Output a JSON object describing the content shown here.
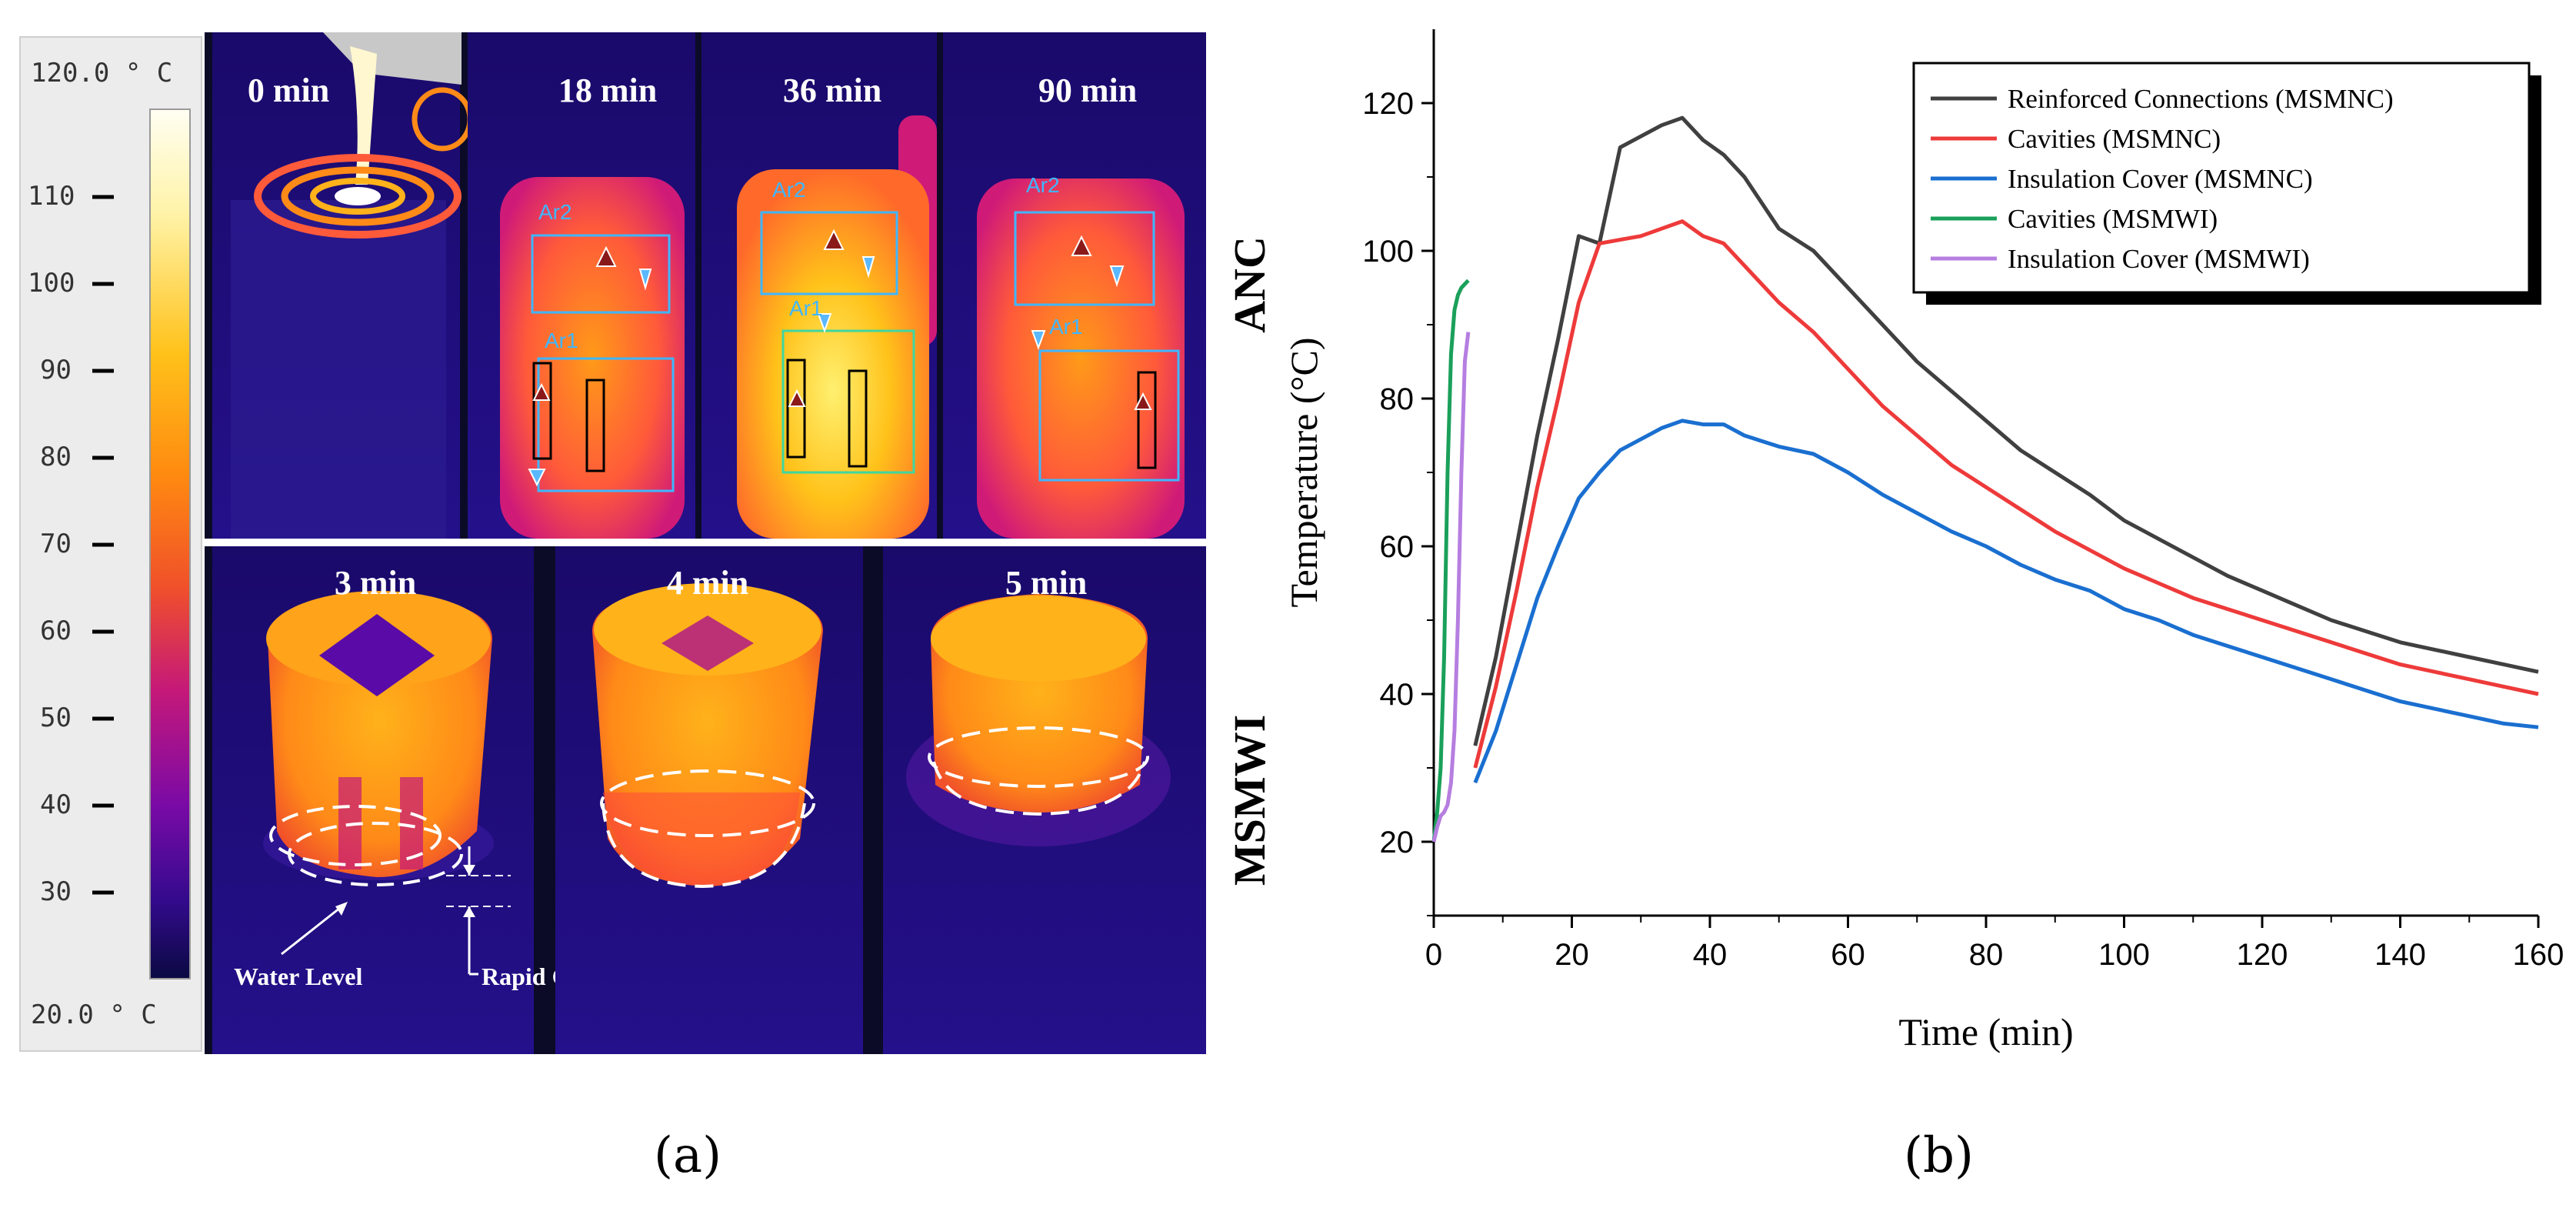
{
  "panel_a": {
    "colorbar": {
      "max_label": "120.0 ° C",
      "min_label": "20.0 ° C",
      "ticks": [
        "110",
        "100",
        "90",
        "80",
        "70",
        "60",
        "50",
        "40",
        "30"
      ]
    },
    "top_frames": [
      "0 min",
      "18 min",
      "36 min",
      "90 min"
    ],
    "bottom_frames": [
      "3 min",
      "4 min",
      "5 min"
    ],
    "regions": {
      "ar1": "Ar1",
      "ar2": "Ar2"
    },
    "annotations": {
      "water_level": "Water Level",
      "cooling_zone": "Rapid Cooling Zone"
    },
    "caption": "(a)"
  },
  "panel_b": {
    "caption": "(b)"
  },
  "colors": {
    "reinforced": "#404040",
    "cavities_nc": "#ee3a3a",
    "insulation_nc": "#1a6fd0",
    "cavities_wi": "#1aa05a",
    "insulation_wi": "#b67ee0"
  },
  "chart_data": {
    "type": "line",
    "xlabel": "Time (min)",
    "ylabel": "Temperature (°C)",
    "xlim": [
      0,
      160
    ],
    "ylim": [
      10,
      130
    ],
    "xticks": [
      0,
      20,
      40,
      60,
      80,
      100,
      120,
      140,
      160
    ],
    "yticks": [
      20,
      40,
      60,
      80,
      100,
      120
    ],
    "legend_position": "top-right",
    "side_labels": [
      "ANC",
      "MSMWI"
    ],
    "series": [
      {
        "name": "Reinforced Connections (MSMNC)",
        "color_key": "reinforced",
        "x": [
          6,
          9,
          12,
          15,
          18,
          21,
          24,
          27,
          30,
          33,
          36,
          39,
          42,
          45,
          50,
          55,
          60,
          65,
          70,
          75,
          80,
          85,
          90,
          95,
          100,
          105,
          110,
          115,
          120,
          125,
          130,
          135,
          140,
          145,
          150,
          155,
          160
        ],
        "y": [
          33,
          45,
          60,
          75,
          88,
          102,
          101,
          114,
          115.5,
          117,
          118,
          115,
          113,
          110,
          103,
          100,
          95,
          90,
          85,
          81,
          77,
          73,
          70,
          67,
          63.5,
          61,
          58.5,
          56,
          54,
          52,
          50,
          48.5,
          47,
          46,
          45,
          44,
          43
        ]
      },
      {
        "name": "Cavities (MSMNC)",
        "color_key": "cavities_nc",
        "x": [
          6,
          9,
          12,
          15,
          18,
          21,
          24,
          27,
          30,
          33,
          36,
          39,
          42,
          45,
          50,
          55,
          60,
          65,
          70,
          75,
          80,
          85,
          90,
          95,
          100,
          105,
          110,
          115,
          120,
          125,
          130,
          135,
          140,
          145,
          150,
          155,
          160
        ],
        "y": [
          30,
          41,
          54,
          68,
          80,
          93,
          101,
          101.5,
          102,
          103,
          104,
          102,
          101,
          98,
          93,
          89,
          84,
          79,
          75,
          71,
          68,
          65,
          62,
          59.5,
          57,
          55,
          53,
          51.5,
          50,
          48.5,
          47,
          45.5,
          44,
          43,
          42,
          41,
          40
        ]
      },
      {
        "name": "Insulation Cover (MSMNC)",
        "color_key": "insulation_nc",
        "x": [
          6,
          9,
          12,
          15,
          18,
          21,
          24,
          27,
          30,
          33,
          36,
          39,
          42,
          45,
          50,
          55,
          60,
          65,
          70,
          75,
          80,
          85,
          90,
          95,
          100,
          105,
          110,
          115,
          120,
          125,
          130,
          135,
          140,
          145,
          150,
          155,
          160
        ],
        "y": [
          28,
          35,
          44,
          53,
          60,
          66.5,
          70,
          73,
          74.5,
          76,
          77,
          76.5,
          76.5,
          75,
          73.5,
          72.5,
          70,
          67,
          64.5,
          62,
          60,
          57.5,
          55.5,
          54,
          51.5,
          50,
          48,
          46.5,
          45,
          43.5,
          42,
          40.5,
          39,
          38,
          37,
          36,
          35.5
        ]
      },
      {
        "name": "Cavities (MSMWI)",
        "color_key": "cavities_wi",
        "x": [
          0,
          0.5,
          1,
          1.5,
          2,
          2.5,
          3,
          3.5,
          4,
          4.5,
          5
        ],
        "y": [
          20,
          24,
          30,
          45,
          70,
          86,
          92,
          94,
          95,
          95.5,
          96
        ]
      },
      {
        "name": "Insulation Cover (MSMWI)",
        "color_key": "insulation_wi",
        "x": [
          0,
          0.5,
          1,
          1.5,
          2,
          2.5,
          3,
          3.5,
          4,
          4.5,
          5
        ],
        "y": [
          20,
          22,
          23.5,
          24,
          25,
          28,
          35,
          50,
          70,
          85,
          89
        ]
      }
    ]
  }
}
